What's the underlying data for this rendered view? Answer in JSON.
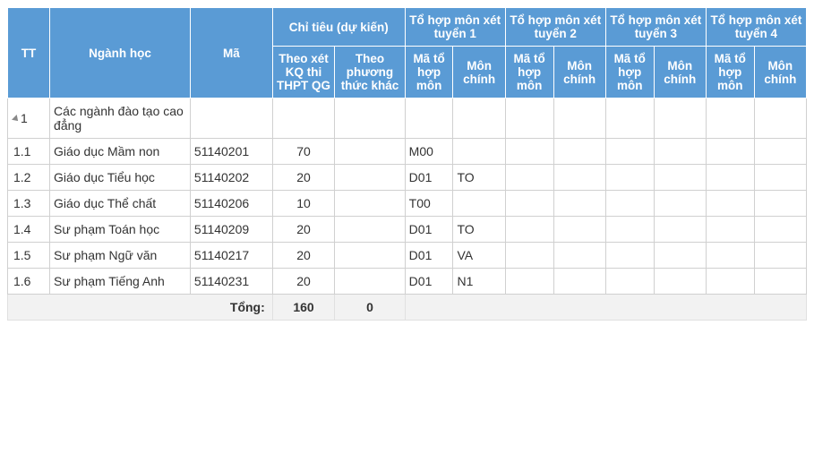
{
  "header": {
    "tt": "TT",
    "nganh": "Ngành học",
    "ma": "Mã",
    "chitieu_group": "Chỉ tiêu (dự kiến)",
    "ct_kq": "Theo xét KQ thi THPT QG",
    "ct_pt": "Theo phương thức khác",
    "th1_group": "Tổ hợp môn xét tuyển 1",
    "th2_group": "Tổ hợp môn xét tuyển 2",
    "th3_group": "Tổ hợp môn xét tuyển 3",
    "th4_group": "Tổ hợp môn xét tuyển 4",
    "ma_th": "Mã tổ hợp môn",
    "mon_chinh": "Môn chính"
  },
  "rows": [
    {
      "tt": "1",
      "expand": true,
      "nganh": "Các ngành đào tạo cao đẳng",
      "ma": "",
      "ct_kq": "",
      "ct_pt": "",
      "th1_ma": "",
      "th1_mc": "",
      "th2_ma": "",
      "th2_mc": "",
      "th3_ma": "",
      "th3_mc": "",
      "th4_ma": "",
      "th4_mc": ""
    },
    {
      "tt": "1.1",
      "expand": false,
      "nganh": "Giáo dục Mầm non",
      "ma": "51140201",
      "ct_kq": "70",
      "ct_pt": "",
      "th1_ma": "M00",
      "th1_mc": "",
      "th2_ma": "",
      "th2_mc": "",
      "th3_ma": "",
      "th3_mc": "",
      "th4_ma": "",
      "th4_mc": ""
    },
    {
      "tt": "1.2",
      "expand": false,
      "nganh": "Giáo dục Tiểu học",
      "ma": "51140202",
      "ct_kq": "20",
      "ct_pt": "",
      "th1_ma": "D01",
      "th1_mc": "TO",
      "th2_ma": "",
      "th2_mc": "",
      "th3_ma": "",
      "th3_mc": "",
      "th4_ma": "",
      "th4_mc": ""
    },
    {
      "tt": "1.3",
      "expand": false,
      "nganh": "Giáo dục Thể chất",
      "ma": "51140206",
      "ct_kq": "10",
      "ct_pt": "",
      "th1_ma": "T00",
      "th1_mc": "",
      "th2_ma": "",
      "th2_mc": "",
      "th3_ma": "",
      "th3_mc": "",
      "th4_ma": "",
      "th4_mc": ""
    },
    {
      "tt": "1.4",
      "expand": false,
      "nganh": "Sư phạm Toán học",
      "ma": "51140209",
      "ct_kq": "20",
      "ct_pt": "",
      "th1_ma": "D01",
      "th1_mc": "TO",
      "th2_ma": "",
      "th2_mc": "",
      "th3_ma": "",
      "th3_mc": "",
      "th4_ma": "",
      "th4_mc": ""
    },
    {
      "tt": "1.5",
      "expand": false,
      "nganh": "Sư phạm Ngữ văn",
      "ma": "51140217",
      "ct_kq": "20",
      "ct_pt": "",
      "th1_ma": "D01",
      "th1_mc": "VA",
      "th2_ma": "",
      "th2_mc": "",
      "th3_ma": "",
      "th3_mc": "",
      "th4_ma": "",
      "th4_mc": ""
    },
    {
      "tt": "1.6",
      "expand": false,
      "nganh": "Sư phạm Tiếng Anh",
      "ma": "51140231",
      "ct_kq": "20",
      "ct_pt": "",
      "th1_ma": "D01",
      "th1_mc": "N1",
      "th2_ma": "",
      "th2_mc": "",
      "th3_ma": "",
      "th3_mc": "",
      "th4_ma": "",
      "th4_mc": ""
    }
  ],
  "footer": {
    "label": "Tổng:",
    "ct_kq_total": "160",
    "ct_pt_total": "0"
  },
  "style": {
    "header_bg": "#5a9bd5",
    "header_fg": "#ffffff",
    "border_color": "#d0d0d0",
    "footer_bg": "#f2f2f2",
    "font_size": 14
  }
}
